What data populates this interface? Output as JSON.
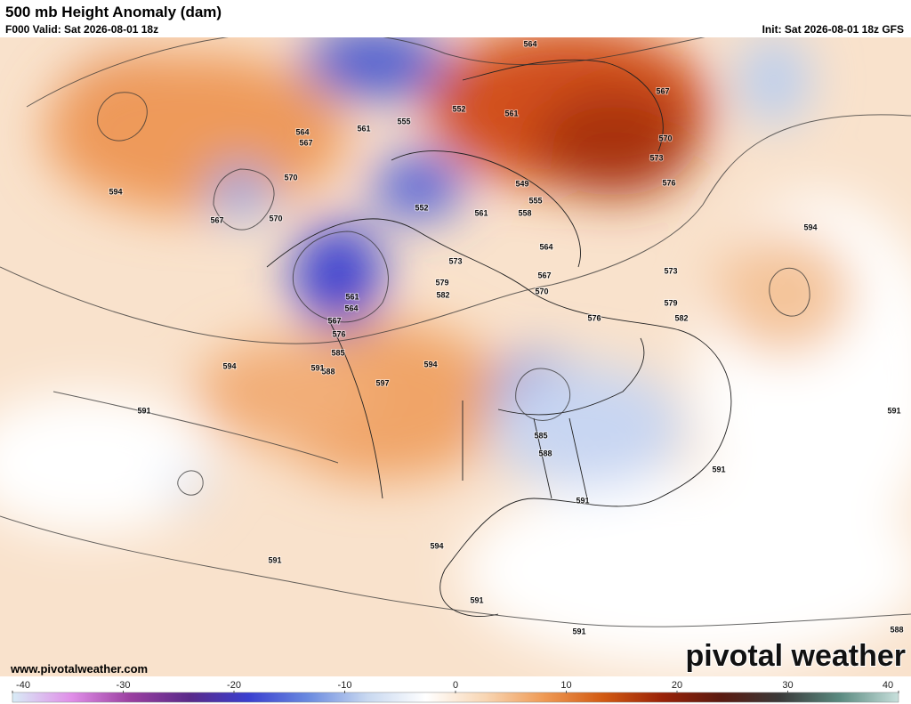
{
  "header": {
    "title": "500 mb Height Anomaly (dam)",
    "valid": "F000 Valid: Sat 2026-08-01 18z",
    "init": "Init: Sat 2026-08-01 18z GFS"
  },
  "footer": {
    "url": "www.pivotalweather.com",
    "logo": "pivotal weather"
  },
  "colorbar": {
    "range": [
      -40,
      40
    ],
    "ticks": [
      -40,
      -30,
      -20,
      -10,
      0,
      10,
      20,
      30,
      40
    ],
    "colors": [
      "#d8ecf6",
      "#e08ee8",
      "#9a3fa0",
      "#5a2a8a",
      "#3a3fd0",
      "#6a8ae0",
      "#c8d8f0",
      "#ffffff",
      "#f8d6b4",
      "#ef9a55",
      "#d25a12",
      "#9a2208",
      "#5a1a10",
      "#3a3a3a",
      "#5a8a80",
      "#c8e0dc"
    ]
  },
  "contour_labels": [
    "594",
    "564",
    "567",
    "555",
    "552",
    "561",
    "561",
    "564",
    "567",
    "570",
    "573",
    "576",
    "570",
    "567",
    "570",
    "552",
    "561",
    "549",
    "555",
    "558",
    "594",
    "564",
    "567",
    "570",
    "573",
    "579",
    "582",
    "573",
    "579",
    "582",
    "576",
    "561",
    "564",
    "567",
    "576",
    "585",
    "588",
    "591",
    "594",
    "594",
    "597",
    "591",
    "591",
    "585",
    "588",
    "591",
    "591",
    "594",
    "591",
    "591",
    "591",
    "588"
  ]
}
